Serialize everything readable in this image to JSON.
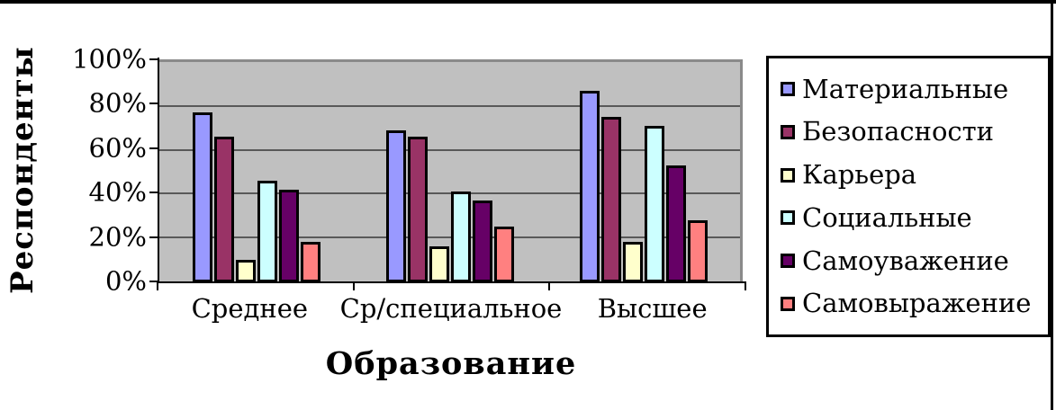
{
  "frame": {
    "border_color": "#000000",
    "background": "#FFFFFF"
  },
  "chart_data": {
    "type": "bar",
    "title": "",
    "xlabel": "Образование",
    "ylabel": "Респонденты",
    "categories": [
      "Среднее",
      "Ср/специальное",
      "Высшее"
    ],
    "series": [
      {
        "name": "Материальные",
        "color": "#9999FF",
        "values": [
          77,
          69,
          87
        ]
      },
      {
        "name": "Безопасности",
        "color": "#993366",
        "values": [
          66,
          66,
          75
        ]
      },
      {
        "name": "Карьера",
        "color": "#FFFFCC",
        "values": [
          10,
          16,
          18
        ]
      },
      {
        "name": "Социальные",
        "color": "#CCFFFF",
        "values": [
          46,
          41,
          71
        ]
      },
      {
        "name": "Самоуважение",
        "color": "#660066",
        "values": [
          42,
          37,
          53
        ]
      },
      {
        "name": "Самовыражение",
        "color": "#FF8080",
        "values": [
          18,
          25,
          28
        ]
      }
    ],
    "ylim": [
      0,
      100
    ],
    "yticks": [
      "0%",
      "20%",
      "40%",
      "60%",
      "80%",
      "100%"
    ],
    "grid": true,
    "legend_position": "right",
    "plot_bg": "#C0C0C0"
  }
}
